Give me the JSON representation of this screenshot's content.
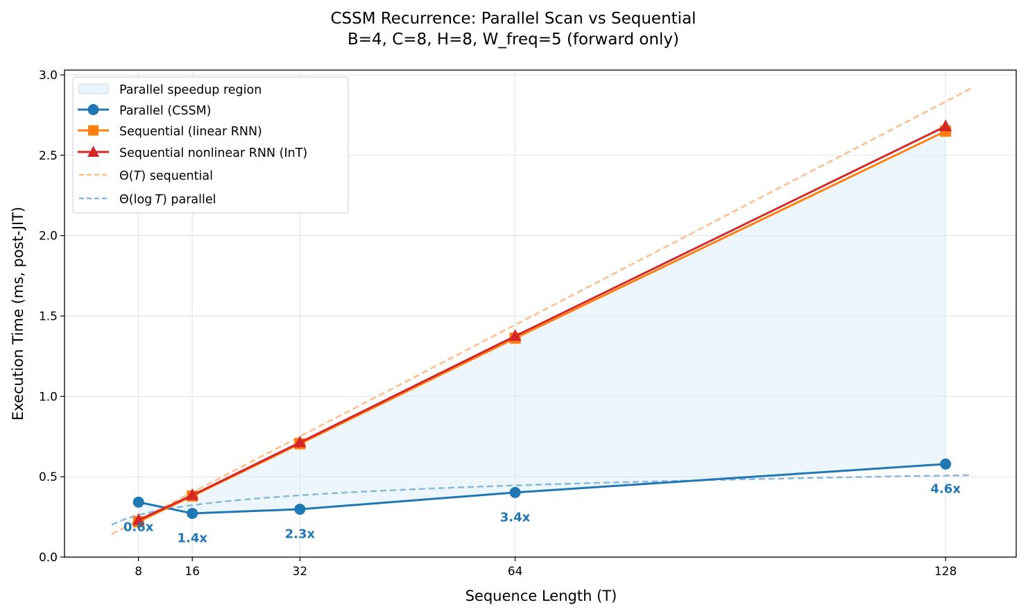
{
  "chart_data": {
    "type": "line",
    "title": "CSSM Recurrence: Parallel Scan vs Sequential",
    "subtitle": "B=4, C=8, H=8, W_freq=5  (forward only)",
    "xlabel": "Sequence Length (T)",
    "ylabel": "Execution Time (ms, post-JIT)",
    "xlim": [
      -3,
      138.5
    ],
    "ylim": [
      0,
      3.03
    ],
    "x": [
      8,
      16,
      32,
      64,
      128
    ],
    "xticks": [
      8,
      16,
      32,
      64,
      128
    ],
    "yticks": [
      "0.0",
      "0.5",
      "1.0",
      "1.5",
      "2.0",
      "2.5",
      "3.0"
    ],
    "grid": true,
    "legend_position": "top-left",
    "series": [
      {
        "name": "Parallel (CSSM)",
        "color": "#1f77b4",
        "marker": "circle",
        "values": [
          0.342,
          0.272,
          0.298,
          0.402,
          0.579
        ]
      },
      {
        "name": "Sequential (linear RNN)",
        "color": "#ff7f0e",
        "marker": "square",
        "values": [
          0.22,
          0.38,
          0.705,
          1.362,
          2.65
        ]
      },
      {
        "name": "Sequential nonlinear RNN (InT)",
        "color": "#d62728",
        "marker": "triangle",
        "values": [
          0.23,
          0.385,
          0.713,
          1.375,
          2.68
        ]
      }
    ],
    "reference_lines": [
      {
        "name": "Θ(T) sequential",
        "color": "#ffbb88",
        "form": "a*T+b",
        "a": 0.0217,
        "b": 0.056,
        "x_range": [
          4,
          132
        ]
      },
      {
        "name": "Θ(log T) parallel",
        "color": "#8ab8dc",
        "form": "a*log2(T)+b",
        "a": 0.0615,
        "b": 0.077,
        "x_range": [
          4,
          132
        ]
      }
    ],
    "fill_region": {
      "name": "Parallel speedup region",
      "between": [
        "Parallel (CSSM)",
        "Sequential (linear RNN)"
      ],
      "color": "#d6eaf8"
    },
    "speedup_labels": [
      "0.6x",
      "1.4x",
      "2.3x",
      "3.4x",
      "4.6x"
    ],
    "legend": {
      "fill": "Parallel speedup region",
      "parallel": "Parallel (CSSM)",
      "seq_linear": "Sequential (linear RNN)",
      "seq_nonlinear": "Sequential nonlinear RNN (InT)",
      "theta_t_prefix": "Θ(",
      "theta_t_var": "T",
      "theta_t_suffix": ") sequential",
      "theta_log_prefix": "Θ(log",
      "theta_log_var": "T",
      "theta_log_suffix": ") parallel"
    }
  }
}
